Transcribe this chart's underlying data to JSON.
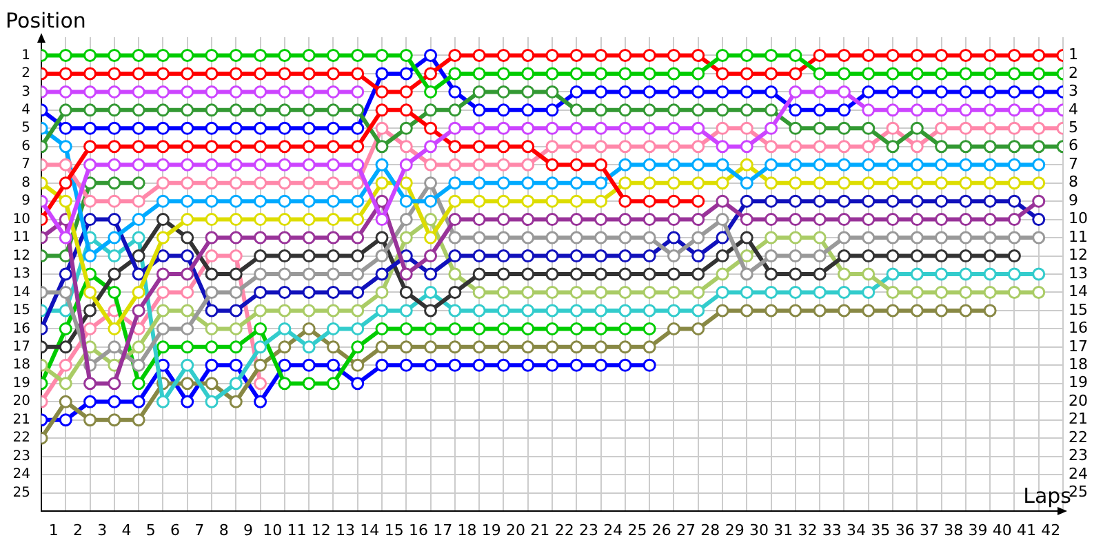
{
  "chart_data": {
    "type": "line",
    "xlabel": "Laps",
    "ylabel": "Position",
    "grid": true,
    "marker": "circle",
    "line_style": "solid",
    "x": [
      0,
      1,
      2,
      3,
      4,
      5,
      6,
      7,
      8,
      9,
      10,
      11,
      12,
      13,
      14,
      15,
      16,
      17,
      18,
      19,
      20,
      21,
      22,
      23,
      24,
      25,
      26,
      27,
      28,
      29,
      30,
      31,
      32,
      33,
      34,
      35,
      36,
      37,
      38,
      39,
      40,
      41,
      42
    ],
    "xlim": [
      0,
      42
    ],
    "xticks": [
      {
        "value": 0.5,
        "label": "1"
      },
      {
        "value": 1.5,
        "label": "2"
      },
      {
        "value": 2.5,
        "label": "3"
      },
      {
        "value": 3.5,
        "label": "4"
      },
      {
        "value": 4.5,
        "label": "5"
      },
      {
        "value": 5.5,
        "label": "6"
      },
      {
        "value": 6.5,
        "label": "7"
      },
      {
        "value": 7.5,
        "label": "8"
      },
      {
        "value": 8.5,
        "label": "9"
      },
      {
        "value": 9.5,
        "label": "10"
      },
      {
        "value": 10.5,
        "label": "11"
      },
      {
        "value": 11.5,
        "label": "12"
      },
      {
        "value": 12.5,
        "label": "13"
      },
      {
        "value": 13.5,
        "label": "14"
      },
      {
        "value": 14.5,
        "label": "15"
      },
      {
        "value": 15.5,
        "label": "16"
      },
      {
        "value": 16.5,
        "label": "17"
      },
      {
        "value": 17.5,
        "label": "18"
      },
      {
        "value": 18.5,
        "label": "19"
      },
      {
        "value": 19.5,
        "label": "20"
      },
      {
        "value": 20.5,
        "label": "21"
      },
      {
        "value": 21.5,
        "label": "22"
      },
      {
        "value": 22.5,
        "label": "23"
      },
      {
        "value": 23.5,
        "label": "24"
      },
      {
        "value": 24.5,
        "label": "25"
      },
      {
        "value": 25.5,
        "label": "26"
      },
      {
        "value": 26.5,
        "label": "27"
      },
      {
        "value": 27.5,
        "label": "28"
      },
      {
        "value": 28.5,
        "label": "29"
      },
      {
        "value": 29.5,
        "label": "30"
      },
      {
        "value": 30.5,
        "label": "31"
      },
      {
        "value": 31.5,
        "label": "32"
      },
      {
        "value": 32.5,
        "label": "33"
      },
      {
        "value": 33.5,
        "label": "34"
      },
      {
        "value": 34.5,
        "label": "35"
      },
      {
        "value": 35.5,
        "label": "36"
      },
      {
        "value": 36.5,
        "label": "37"
      },
      {
        "value": 37.5,
        "label": "38"
      },
      {
        "value": 38.5,
        "label": "39"
      },
      {
        "value": 39.5,
        "label": "40"
      },
      {
        "value": 40.5,
        "label": "41"
      },
      {
        "value": 41.5,
        "label": "42"
      }
    ],
    "ylim": [
      26,
      0
    ],
    "yticks": [
      1,
      2,
      3,
      4,
      5,
      6,
      7,
      8,
      9,
      10,
      11,
      12,
      13,
      14,
      15,
      16,
      17,
      18,
      19,
      20,
      21,
      22,
      23,
      24,
      25
    ],
    "y2lim": [
      26,
      0
    ],
    "y2ticks": [
      1,
      2,
      3,
      4,
      5,
      6,
      7,
      8,
      9,
      10,
      11,
      12,
      13,
      14,
      15,
      16,
      17,
      18,
      19,
      20,
      21,
      22,
      23,
      24,
      25
    ],
    "series": [
      {
        "color": "#00cc00",
        "values": [
          1,
          1,
          1,
          1,
          1,
          1,
          1,
          1,
          1,
          1,
          1,
          1,
          1,
          1,
          1,
          1,
          3,
          2,
          2,
          2,
          2,
          2,
          2,
          2,
          2,
          2,
          2,
          2,
          1,
          1,
          1,
          1,
          2,
          2,
          2,
          2,
          2,
          2,
          2,
          2,
          2,
          2,
          2
        ]
      },
      {
        "color": "#ff0000",
        "values": [
          2,
          2,
          2,
          2,
          2,
          2,
          2,
          2,
          2,
          2,
          2,
          2,
          2,
          2,
          3,
          3,
          2,
          1,
          1,
          1,
          1,
          1,
          1,
          1,
          1,
          1,
          1,
          1,
          2,
          2,
          2,
          2,
          1,
          1,
          1,
          1,
          1,
          1,
          1,
          1,
          1,
          1,
          1
        ]
      },
      {
        "color": "#cc44ff",
        "values": [
          3,
          3,
          3,
          3,
          3,
          3,
          3,
          3,
          3,
          3,
          3,
          3,
          3,
          3,
          null,
          null,
          null,
          null,
          null,
          null,
          null,
          null,
          null,
          null,
          null,
          null,
          null,
          null,
          null,
          null,
          null,
          null,
          null,
          null,
          null,
          null,
          null,
          null,
          null,
          null,
          null,
          null,
          null
        ]
      },
      {
        "color": "#cc44ff",
        "values": [
          9,
          11,
          7,
          7,
          7,
          7,
          7,
          7,
          7,
          7,
          7,
          7,
          7,
          7,
          10,
          7,
          6,
          5,
          5,
          5,
          5,
          5,
          5,
          5,
          5,
          5,
          5,
          5,
          6,
          6,
          5,
          3,
          3,
          3,
          4,
          4,
          4,
          4,
          4,
          4,
          4,
          4,
          4
        ]
      },
      {
        "color": "#ff0000",
        "values": [
          10,
          8,
          6,
          6,
          6,
          6,
          6,
          6,
          6,
          6,
          6,
          6,
          6,
          6,
          4,
          4,
          5,
          6,
          6,
          6,
          6,
          7,
          7,
          7,
          9,
          9,
          9,
          9,
          null,
          null,
          null,
          null,
          null,
          null,
          null,
          null,
          null,
          null,
          null,
          null,
          null,
          null,
          null
        ]
      },
      {
        "color": "#339933",
        "values": [
          6,
          4,
          4,
          4,
          4,
          4,
          4,
          4,
          4,
          4,
          4,
          4,
          4,
          4,
          6,
          5,
          4,
          4,
          3,
          3,
          3,
          3,
          4,
          4,
          4,
          4,
          4,
          4,
          4,
          4,
          4,
          5,
          5,
          5,
          5,
          6,
          5,
          6,
          6,
          6,
          6,
          6,
          6
        ]
      },
      {
        "color": "#0000ff",
        "values": [
          4,
          5,
          5,
          5,
          5,
          5,
          5,
          5,
          5,
          5,
          5,
          5,
          5,
          5,
          2,
          2,
          1,
          3,
          4,
          4,
          4,
          4,
          3,
          3,
          3,
          3,
          3,
          3,
          3,
          3,
          3,
          4,
          4,
          4,
          3,
          3,
          3,
          3,
          3,
          3,
          3,
          3,
          3
        ]
      },
      {
        "color": "#ff88aa",
        "values": [
          7,
          7,
          9,
          9,
          9,
          8,
          8,
          8,
          8,
          8,
          8,
          8,
          8,
          8,
          5,
          6,
          7,
          7,
          7,
          7,
          7,
          6,
          6,
          6,
          6,
          6,
          6,
          6,
          5,
          5,
          6,
          6,
          6,
          6,
          6,
          5,
          6,
          5,
          5,
          5,
          5,
          5,
          5
        ]
      },
      {
        "color": "#00aaff",
        "values": [
          5,
          6,
          12,
          11,
          10,
          9,
          9,
          9,
          9,
          9,
          9,
          9,
          9,
          9,
          7,
          9,
          9,
          8,
          8,
          8,
          8,
          8,
          8,
          8,
          7,
          7,
          7,
          7,
          7,
          8,
          7,
          7,
          7,
          7,
          7,
          7,
          7,
          7,
          7,
          7,
          7,
          7,
          null
        ]
      },
      {
        "color": "#dddd00",
        "values": [
          8,
          9,
          14,
          16,
          14,
          11,
          10,
          10,
          10,
          10,
          10,
          10,
          10,
          10,
          8,
          8,
          11,
          9,
          9,
          9,
          9,
          9,
          9,
          9,
          8,
          8,
          8,
          8,
          8,
          7,
          8,
          8,
          8,
          8,
          8,
          8,
          8,
          8,
          8,
          8,
          8,
          8,
          null
        ]
      },
      {
        "color": "#993399",
        "values": [
          11,
          10,
          19,
          19,
          15,
          13,
          13,
          11,
          11,
          11,
          11,
          11,
          11,
          11,
          9,
          13,
          12,
          10,
          10,
          10,
          10,
          10,
          10,
          10,
          10,
          10,
          10,
          10,
          9,
          10,
          10,
          10,
          10,
          10,
          10,
          10,
          10,
          10,
          10,
          10,
          10,
          9,
          null
        ]
      },
      {
        "color": "#999999",
        "values": [
          14,
          14,
          18,
          17,
          18,
          16,
          16,
          14,
          14,
          13,
          13,
          13,
          13,
          13,
          12,
          10,
          8,
          11,
          11,
          11,
          11,
          11,
          11,
          11,
          11,
          11,
          12,
          11,
          10,
          13,
          12,
          12,
          12,
          11,
          11,
          11,
          11,
          11,
          11,
          11,
          11,
          11,
          null
        ]
      },
      {
        "color": "#1111bb",
        "values": [
          16,
          13,
          10,
          10,
          13,
          12,
          12,
          15,
          15,
          14,
          14,
          14,
          14,
          14,
          13,
          12,
          13,
          12,
          12,
          12,
          12,
          12,
          12,
          12,
          12,
          12,
          11,
          12,
          11,
          9,
          9,
          9,
          9,
          9,
          9,
          9,
          9,
          9,
          9,
          9,
          9,
          10,
          null
        ]
      },
      {
        "color": "#333333",
        "values": [
          17,
          17,
          15,
          13,
          12,
          10,
          11,
          13,
          13,
          12,
          12,
          12,
          12,
          12,
          11,
          14,
          15,
          14,
          13,
          13,
          13,
          13,
          13,
          13,
          13,
          13,
          13,
          13,
          12,
          11,
          13,
          13,
          13,
          12,
          12,
          12,
          12,
          12,
          12,
          12,
          12,
          null,
          null
        ]
      },
      {
        "color": "#aacc66",
        "values": [
          18,
          19,
          17,
          18,
          17,
          15,
          15,
          16,
          16,
          15,
          15,
          15,
          15,
          15,
          14,
          11,
          10,
          13,
          14,
          14,
          14,
          14,
          14,
          14,
          14,
          14,
          14,
          14,
          13,
          12,
          11,
          11,
          11,
          13,
          13,
          14,
          14,
          14,
          14,
          14,
          14,
          14,
          null
        ]
      },
      {
        "color": "#33cccc",
        "values": [
          15,
          15,
          11,
          12,
          11,
          20,
          18,
          20,
          19,
          17,
          16,
          17,
          16,
          16,
          15,
          15,
          14,
          15,
          15,
          15,
          15,
          15,
          15,
          15,
          15,
          15,
          15,
          15,
          14,
          14,
          14,
          14,
          14,
          14,
          14,
          13,
          13,
          13,
          13,
          13,
          13,
          13,
          null
        ]
      },
      {
        "color": "#00cc00",
        "values": [
          19,
          16,
          13,
          14,
          19,
          17,
          17,
          17,
          17,
          16,
          19,
          19,
          19,
          17,
          16,
          16,
          16,
          16,
          16,
          16,
          16,
          16,
          16,
          16,
          16,
          16,
          null,
          null,
          null,
          null,
          null,
          null,
          null,
          null,
          null,
          null,
          null,
          null,
          null,
          null,
          null,
          null,
          null
        ]
      },
      {
        "color": "#339933",
        "values": [
          12,
          12,
          8,
          8,
          8,
          null,
          null,
          null,
          null,
          null,
          null,
          null,
          null,
          null,
          null,
          null,
          null,
          null,
          null,
          null,
          null,
          null,
          null,
          null,
          null,
          null,
          null,
          null,
          null,
          null,
          null,
          null,
          null,
          null,
          null,
          null,
          null,
          null,
          null,
          null,
          null,
          null,
          null
        ]
      },
      {
        "color": "#888844",
        "values": [
          22,
          20,
          21,
          21,
          21,
          19,
          19,
          19,
          20,
          18,
          17,
          16,
          17,
          18,
          17,
          17,
          17,
          17,
          17,
          17,
          17,
          17,
          17,
          17,
          17,
          17,
          16,
          16,
          15,
          15,
          15,
          15,
          15,
          15,
          15,
          15,
          15,
          15,
          15,
          15,
          null,
          null,
          null
        ]
      },
      {
        "color": "#0000ff",
        "values": [
          21,
          21,
          20,
          20,
          20,
          18,
          20,
          18,
          18,
          20,
          18,
          18,
          18,
          19,
          18,
          18,
          18,
          18,
          18,
          18,
          18,
          18,
          18,
          18,
          18,
          18,
          null,
          null,
          null,
          null,
          null,
          null,
          null,
          null,
          null,
          null,
          null,
          null,
          null,
          null,
          null,
          null,
          null
        ]
      },
      {
        "color": "#ff88aa",
        "values": [
          20,
          18,
          16,
          15,
          16,
          14,
          14,
          12,
          12,
          19,
          null,
          null,
          null,
          null,
          null,
          null,
          null,
          null,
          null,
          null,
          null,
          null,
          null,
          null,
          null,
          null,
          null,
          null,
          null,
          null,
          null,
          null,
          null,
          null,
          null,
          null,
          null,
          null,
          null,
          null,
          null,
          null,
          null
        ]
      }
    ]
  }
}
